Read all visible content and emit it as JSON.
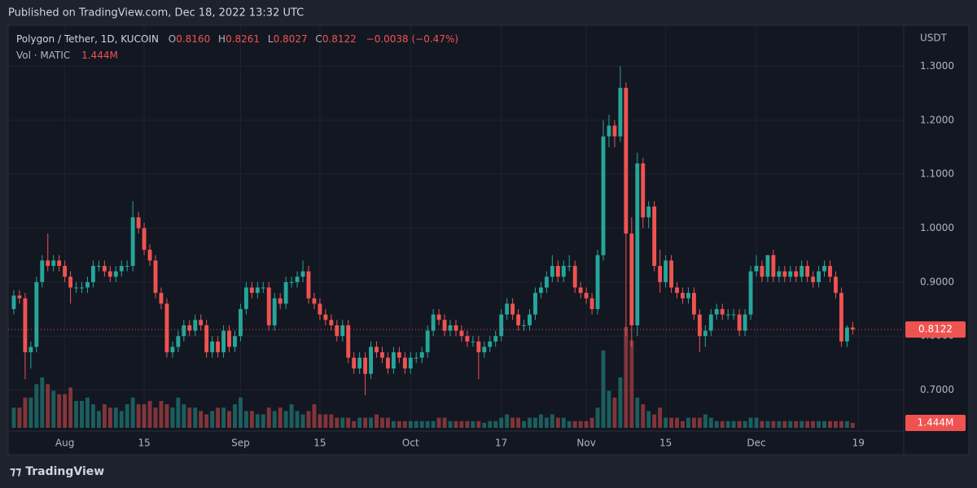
{
  "publish_line": "Published on TradingView.com, Dec 18, 2022 13:32 UTC",
  "brand": "TradingView",
  "chart_data": {
    "type": "candlestick",
    "title": "Polygon / Tether, 1D, KUCOIN",
    "ohlc_letters": [
      "O",
      "H",
      "L",
      "C"
    ],
    "ohlc_labels": [
      "0.8160",
      "0.8261",
      "0.8027",
      "0.8122"
    ],
    "change_label": "−0.0038 (−0.47%)",
    "y_unit": "USDT",
    "last_price_label": "0.8122",
    "up_color": "#26a69a",
    "down_color": "#ef5350",
    "x": [
      "2022-07-23",
      "2022-07-24",
      "2022-07-25",
      "2022-07-26",
      "2022-07-27",
      "2022-07-28",
      "2022-07-29",
      "2022-07-30",
      "2022-07-31",
      "2022-08-01",
      "2022-08-02",
      "2022-08-03",
      "2022-08-04",
      "2022-08-05",
      "2022-08-06",
      "2022-08-07",
      "2022-08-08",
      "2022-08-09",
      "2022-08-10",
      "2022-08-11",
      "2022-08-12",
      "2022-08-13",
      "2022-08-14",
      "2022-08-15",
      "2022-08-16",
      "2022-08-17",
      "2022-08-18",
      "2022-08-19",
      "2022-08-20",
      "2022-08-21",
      "2022-08-22",
      "2022-08-23",
      "2022-08-24",
      "2022-08-25",
      "2022-08-26",
      "2022-08-27",
      "2022-08-28",
      "2022-08-29",
      "2022-08-30",
      "2022-08-31",
      "2022-09-01",
      "2022-09-02",
      "2022-09-03",
      "2022-09-04",
      "2022-09-05",
      "2022-09-06",
      "2022-09-07",
      "2022-09-08",
      "2022-09-09",
      "2022-09-10",
      "2022-09-11",
      "2022-09-12",
      "2022-09-13",
      "2022-09-14",
      "2022-09-15",
      "2022-09-16",
      "2022-09-17",
      "2022-09-18",
      "2022-09-19",
      "2022-09-20",
      "2022-09-21",
      "2022-09-22",
      "2022-09-23",
      "2022-09-24",
      "2022-09-25",
      "2022-09-26",
      "2022-09-27",
      "2022-09-28",
      "2022-09-29",
      "2022-09-30",
      "2022-10-01",
      "2022-10-02",
      "2022-10-03",
      "2022-10-04",
      "2022-10-05",
      "2022-10-06",
      "2022-10-07",
      "2022-10-08",
      "2022-10-09",
      "2022-10-10",
      "2022-10-11",
      "2022-10-12",
      "2022-10-13",
      "2022-10-14",
      "2022-10-15",
      "2022-10-16",
      "2022-10-17",
      "2022-10-18",
      "2022-10-19",
      "2022-10-20",
      "2022-10-21",
      "2022-10-22",
      "2022-10-23",
      "2022-10-24",
      "2022-10-25",
      "2022-10-26",
      "2022-10-27",
      "2022-10-28",
      "2022-10-29",
      "2022-10-30",
      "2022-10-31",
      "2022-11-01",
      "2022-11-02",
      "2022-11-03",
      "2022-11-04",
      "2022-11-05",
      "2022-11-06",
      "2022-11-07",
      "2022-11-08",
      "2022-11-09",
      "2022-11-10",
      "2022-11-11",
      "2022-11-12",
      "2022-11-13",
      "2022-11-14",
      "2022-11-15",
      "2022-11-16",
      "2022-11-17",
      "2022-11-18",
      "2022-11-19",
      "2022-11-20",
      "2022-11-21",
      "2022-11-22",
      "2022-11-23",
      "2022-11-24",
      "2022-11-25",
      "2022-11-26",
      "2022-11-27",
      "2022-11-28",
      "2022-11-29",
      "2022-11-30",
      "2022-12-01",
      "2022-12-02",
      "2022-12-03",
      "2022-12-04",
      "2022-12-05",
      "2022-12-06",
      "2022-12-07",
      "2022-12-08",
      "2022-12-09",
      "2022-12-10",
      "2022-12-11",
      "2022-12-12",
      "2022-12-13",
      "2022-12-14",
      "2022-12-15",
      "2022-12-16",
      "2022-12-17",
      "2022-12-18"
    ],
    "ohlc": [
      [
        0.85,
        0.885,
        0.84,
        0.875
      ],
      [
        0.875,
        0.885,
        0.86,
        0.87
      ],
      [
        0.87,
        0.88,
        0.72,
        0.77
      ],
      [
        0.77,
        0.79,
        0.74,
        0.78
      ],
      [
        0.78,
        0.91,
        0.77,
        0.9
      ],
      [
        0.9,
        0.95,
        0.89,
        0.94
      ],
      [
        0.94,
        0.99,
        0.92,
        0.93
      ],
      [
        0.93,
        0.95,
        0.92,
        0.94
      ],
      [
        0.94,
        0.95,
        0.92,
        0.93
      ],
      [
        0.93,
        0.94,
        0.9,
        0.91
      ],
      [
        0.91,
        0.92,
        0.86,
        0.89
      ],
      [
        0.89,
        0.9,
        0.88,
        0.89
      ],
      [
        0.89,
        0.9,
        0.88,
        0.89
      ],
      [
        0.89,
        0.91,
        0.88,
        0.9
      ],
      [
        0.9,
        0.94,
        0.89,
        0.93
      ],
      [
        0.93,
        0.94,
        0.92,
        0.93
      ],
      [
        0.93,
        0.94,
        0.91,
        0.92
      ],
      [
        0.92,
        0.93,
        0.9,
        0.91
      ],
      [
        0.91,
        0.93,
        0.9,
        0.92
      ],
      [
        0.92,
        0.94,
        0.91,
        0.93
      ],
      [
        0.93,
        0.94,
        0.92,
        0.93
      ],
      [
        0.93,
        1.05,
        0.92,
        1.02
      ],
      [
        1.02,
        1.03,
        0.99,
        1.0
      ],
      [
        1.0,
        1.01,
        0.95,
        0.96
      ],
      [
        0.96,
        0.97,
        0.93,
        0.94
      ],
      [
        0.94,
        0.95,
        0.87,
        0.88
      ],
      [
        0.88,
        0.89,
        0.85,
        0.86
      ],
      [
        0.86,
        0.87,
        0.76,
        0.77
      ],
      [
        0.77,
        0.79,
        0.76,
        0.78
      ],
      [
        0.78,
        0.81,
        0.77,
        0.8
      ],
      [
        0.8,
        0.83,
        0.79,
        0.82
      ],
      [
        0.82,
        0.83,
        0.8,
        0.81
      ],
      [
        0.81,
        0.84,
        0.8,
        0.83
      ],
      [
        0.83,
        0.84,
        0.81,
        0.82
      ],
      [
        0.82,
        0.83,
        0.76,
        0.77
      ],
      [
        0.77,
        0.8,
        0.76,
        0.79
      ],
      [
        0.79,
        0.8,
        0.76,
        0.77
      ],
      [
        0.77,
        0.82,
        0.76,
        0.81
      ],
      [
        0.81,
        0.82,
        0.77,
        0.78
      ],
      [
        0.78,
        0.81,
        0.77,
        0.8
      ],
      [
        0.8,
        0.86,
        0.79,
        0.85
      ],
      [
        0.85,
        0.9,
        0.84,
        0.89
      ],
      [
        0.89,
        0.9,
        0.87,
        0.88
      ],
      [
        0.88,
        0.9,
        0.87,
        0.89
      ],
      [
        0.89,
        0.9,
        0.88,
        0.89
      ],
      [
        0.89,
        0.9,
        0.81,
        0.82
      ],
      [
        0.82,
        0.88,
        0.81,
        0.87
      ],
      [
        0.87,
        0.88,
        0.85,
        0.86
      ],
      [
        0.86,
        0.91,
        0.85,
        0.9
      ],
      [
        0.9,
        0.91,
        0.89,
        0.9
      ],
      [
        0.9,
        0.92,
        0.89,
        0.91
      ],
      [
        0.91,
        0.94,
        0.9,
        0.92
      ],
      [
        0.92,
        0.93,
        0.86,
        0.87
      ],
      [
        0.87,
        0.88,
        0.85,
        0.86
      ],
      [
        0.86,
        0.87,
        0.83,
        0.84
      ],
      [
        0.84,
        0.85,
        0.82,
        0.83
      ],
      [
        0.83,
        0.84,
        0.81,
        0.82
      ],
      [
        0.82,
        0.83,
        0.79,
        0.8
      ],
      [
        0.8,
        0.83,
        0.79,
        0.82
      ],
      [
        0.82,
        0.83,
        0.75,
        0.76
      ],
      [
        0.76,
        0.77,
        0.73,
        0.74
      ],
      [
        0.74,
        0.77,
        0.73,
        0.76
      ],
      [
        0.76,
        0.77,
        0.69,
        0.73
      ],
      [
        0.73,
        0.79,
        0.72,
        0.78
      ],
      [
        0.78,
        0.79,
        0.76,
        0.77
      ],
      [
        0.77,
        0.78,
        0.75,
        0.76
      ],
      [
        0.76,
        0.77,
        0.73,
        0.74
      ],
      [
        0.74,
        0.78,
        0.73,
        0.77
      ],
      [
        0.77,
        0.78,
        0.75,
        0.76
      ],
      [
        0.76,
        0.77,
        0.73,
        0.74
      ],
      [
        0.74,
        0.77,
        0.73,
        0.76
      ],
      [
        0.76,
        0.77,
        0.75,
        0.76
      ],
      [
        0.76,
        0.78,
        0.75,
        0.77
      ],
      [
        0.77,
        0.82,
        0.76,
        0.81
      ],
      [
        0.81,
        0.85,
        0.8,
        0.84
      ],
      [
        0.84,
        0.85,
        0.82,
        0.83
      ],
      [
        0.83,
        0.84,
        0.8,
        0.81
      ],
      [
        0.81,
        0.83,
        0.8,
        0.82
      ],
      [
        0.82,
        0.83,
        0.8,
        0.81
      ],
      [
        0.81,
        0.82,
        0.79,
        0.8
      ],
      [
        0.8,
        0.81,
        0.78,
        0.79
      ],
      [
        0.79,
        0.8,
        0.78,
        0.79
      ],
      [
        0.79,
        0.8,
        0.72,
        0.77
      ],
      [
        0.77,
        0.79,
        0.76,
        0.78
      ],
      [
        0.78,
        0.8,
        0.77,
        0.79
      ],
      [
        0.79,
        0.81,
        0.78,
        0.8
      ],
      [
        0.8,
        0.85,
        0.79,
        0.84
      ],
      [
        0.84,
        0.87,
        0.83,
        0.86
      ],
      [
        0.86,
        0.87,
        0.83,
        0.84
      ],
      [
        0.84,
        0.85,
        0.81,
        0.82
      ],
      [
        0.82,
        0.83,
        0.81,
        0.82
      ],
      [
        0.82,
        0.85,
        0.81,
        0.84
      ],
      [
        0.84,
        0.89,
        0.83,
        0.88
      ],
      [
        0.88,
        0.9,
        0.87,
        0.89
      ],
      [
        0.89,
        0.92,
        0.88,
        0.91
      ],
      [
        0.91,
        0.95,
        0.9,
        0.93
      ],
      [
        0.93,
        0.94,
        0.9,
        0.91
      ],
      [
        0.91,
        0.94,
        0.9,
        0.93
      ],
      [
        0.93,
        0.95,
        0.92,
        0.93
      ],
      [
        0.93,
        0.94,
        0.88,
        0.89
      ],
      [
        0.89,
        0.9,
        0.87,
        0.88
      ],
      [
        0.88,
        0.89,
        0.86,
        0.87
      ],
      [
        0.87,
        0.88,
        0.84,
        0.85
      ],
      [
        0.85,
        0.96,
        0.84,
        0.95
      ],
      [
        0.95,
        1.2,
        0.94,
        1.17
      ],
      [
        1.17,
        1.21,
        1.15,
        1.19
      ],
      [
        1.19,
        1.2,
        1.15,
        1.17
      ],
      [
        1.17,
        1.3,
        1.16,
        1.26
      ],
      [
        1.26,
        1.27,
        0.8,
        0.99
      ],
      [
        0.99,
        1.02,
        0.78,
        0.82
      ],
      [
        0.82,
        1.14,
        0.8,
        1.12
      ],
      [
        1.12,
        1.13,
        1.0,
        1.02
      ],
      [
        1.02,
        1.05,
        1.0,
        1.04
      ],
      [
        1.04,
        1.05,
        0.92,
        0.93
      ],
      [
        0.93,
        0.96,
        0.88,
        0.9
      ],
      [
        0.9,
        0.95,
        0.89,
        0.94
      ],
      [
        0.94,
        0.95,
        0.88,
        0.89
      ],
      [
        0.89,
        0.9,
        0.87,
        0.88
      ],
      [
        0.88,
        0.89,
        0.86,
        0.87
      ],
      [
        0.87,
        0.89,
        0.86,
        0.88
      ],
      [
        0.88,
        0.89,
        0.83,
        0.84
      ],
      [
        0.84,
        0.85,
        0.77,
        0.8
      ],
      [
        0.8,
        0.82,
        0.78,
        0.81
      ],
      [
        0.81,
        0.85,
        0.8,
        0.84
      ],
      [
        0.84,
        0.86,
        0.83,
        0.85
      ],
      [
        0.85,
        0.86,
        0.83,
        0.84
      ],
      [
        0.84,
        0.85,
        0.83,
        0.84
      ],
      [
        0.84,
        0.85,
        0.83,
        0.84
      ],
      [
        0.84,
        0.85,
        0.8,
        0.81
      ],
      [
        0.81,
        0.85,
        0.8,
        0.84
      ],
      [
        0.84,
        0.93,
        0.83,
        0.92
      ],
      [
        0.92,
        0.95,
        0.91,
        0.93
      ],
      [
        0.93,
        0.94,
        0.9,
        0.91
      ],
      [
        0.91,
        0.95,
        0.9,
        0.95
      ],
      [
        0.95,
        0.96,
        0.9,
        0.91
      ],
      [
        0.91,
        0.93,
        0.9,
        0.92
      ],
      [
        0.92,
        0.93,
        0.9,
        0.91
      ],
      [
        0.91,
        0.93,
        0.9,
        0.92
      ],
      [
        0.92,
        0.93,
        0.9,
        0.91
      ],
      [
        0.91,
        0.94,
        0.9,
        0.93
      ],
      [
        0.93,
        0.94,
        0.9,
        0.91
      ],
      [
        0.91,
        0.92,
        0.89,
        0.9
      ],
      [
        0.9,
        0.93,
        0.89,
        0.92
      ],
      [
        0.92,
        0.94,
        0.91,
        0.93
      ],
      [
        0.93,
        0.94,
        0.9,
        0.91
      ],
      [
        0.91,
        0.92,
        0.87,
        0.88
      ],
      [
        0.88,
        0.89,
        0.78,
        0.79
      ],
      [
        0.79,
        0.82,
        0.78,
        0.816
      ],
      [
        0.816,
        0.8261,
        0.8027,
        0.8122
      ]
    ],
    "volume": {
      "name": "Vol · MATIC",
      "last_value_label": "1.444M",
      "values": [
        6000000,
        6000000,
        9000000,
        9000000,
        13000000,
        15000000,
        13000000,
        11000000,
        10000000,
        10000000,
        12000000,
        8000000,
        8000000,
        9000000,
        7000000,
        5000000,
        7000000,
        6000000,
        6000000,
        5000000,
        7000000,
        9000000,
        7000000,
        7000000,
        8000000,
        6000000,
        8000000,
        7000000,
        6000000,
        9000000,
        7000000,
        6000000,
        6000000,
        5000000,
        4000000,
        5000000,
        6000000,
        6000000,
        5000000,
        7000000,
        9000000,
        5000000,
        5000000,
        4000000,
        4000000,
        6000000,
        5000000,
        6000000,
        5000000,
        7000000,
        5000000,
        4000000,
        5000000,
        7000000,
        4000000,
        4000000,
        4000000,
        3000000,
        3000000,
        3000000,
        2000000,
        3000000,
        3000000,
        3000000,
        4000000,
        3000000,
        3000000,
        2000000,
        2000000,
        2000000,
        2000000,
        2000000,
        2000000,
        2000000,
        2000000,
        3000000,
        3000000,
        2000000,
        2000000,
        2000000,
        2000000,
        2000000,
        2000000,
        1500000,
        2000000,
        2000000,
        3000000,
        4000000,
        3000000,
        3000000,
        2000000,
        3000000,
        3000000,
        4000000,
        3000000,
        4000000,
        3000000,
        3000000,
        2000000,
        2000000,
        2000000,
        2000000,
        3000000,
        6000000,
        23000000,
        11000000,
        9000000,
        15000000,
        30000000,
        26000000,
        9000000,
        7000000,
        5000000,
        4000000,
        6000000,
        3000000,
        3000000,
        3000000,
        2000000,
        3000000,
        3000000,
        3000000,
        4000000,
        3000000,
        2000000,
        2000000,
        2000000,
        2000000,
        2000000,
        2000000,
        3000000,
        3000000,
        2000000,
        2000000,
        2000000,
        2000000,
        2000000,
        2000000,
        2000000,
        2000000,
        2000000,
        2000000,
        2000000,
        2000000,
        2000000,
        2000000,
        2000000,
        2000000,
        1444000
      ]
    },
    "xlim": [
      "2022-07-22",
      "2022-12-27"
    ],
    "xticks": [
      {
        "value": "2022-08-01",
        "label": "Aug"
      },
      {
        "value": "2022-08-15",
        "label": "15"
      },
      {
        "value": "2022-09-01",
        "label": "Sep"
      },
      {
        "value": "2022-09-15",
        "label": "15"
      },
      {
        "value": "2022-10-01",
        "label": "Oct"
      },
      {
        "value": "2022-10-17",
        "label": "17"
      },
      {
        "value": "2022-11-01",
        "label": "Nov"
      },
      {
        "value": "2022-11-15",
        "label": "15"
      },
      {
        "value": "2022-12-01",
        "label": "Dec"
      },
      {
        "value": "2022-12-19",
        "label": "19"
      }
    ],
    "ylim": [
      0.624,
      1.376
    ],
    "yticks": [
      {
        "value": 0.7,
        "label": "0.7000"
      },
      {
        "value": 0.8,
        "label": "0.8000"
      },
      {
        "value": 0.9,
        "label": "0.9000"
      },
      {
        "value": 1.0,
        "label": "1.0000"
      },
      {
        "value": 1.1,
        "label": "1.1000"
      },
      {
        "value": 1.2,
        "label": "1.2000"
      },
      {
        "value": 1.3,
        "label": "1.3000"
      }
    ],
    "grid": true
  }
}
